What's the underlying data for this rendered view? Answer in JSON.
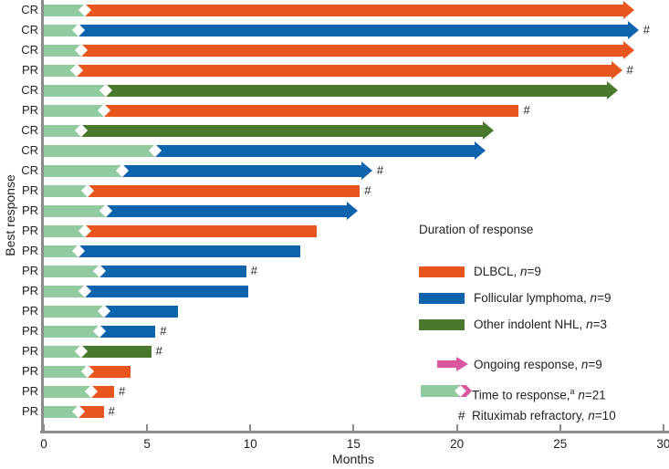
{
  "colors": {
    "dlbcl": "#E8551E",
    "follicular": "#0E63AD",
    "other_nhl": "#4A792D",
    "time_to_response": "#93CBA0",
    "ongoing": "#DA579E",
    "axis": "#8C8C8C",
    "text": "#231F20"
  },
  "axes": {
    "xlabel": "Months",
    "ylabel": "Best response"
  },
  "legend": {
    "title": "Duration of response",
    "items": [
      {
        "key": "dlbcl",
        "prefix": "DLBCL, ",
        "n": "n",
        "suffix": "=9"
      },
      {
        "key": "follicular",
        "prefix": "Follicular lymphoma, ",
        "n": "n",
        "suffix": "=9"
      },
      {
        "key": "other_nhl",
        "prefix": "Other indolent NHL, ",
        "n": "n",
        "suffix": "=3"
      }
    ],
    "ongoing": {
      "prefix": "Ongoing response, ",
      "n": "n",
      "suffix": "=9"
    },
    "time": {
      "prefix": "Time to response,",
      "sup": "a",
      "mid": " ",
      "n": "n",
      "suffix": "=21"
    },
    "refractory": {
      "symbol": "#",
      "prefix": "Rituximab refractory, ",
      "n": "n",
      "suffix": "=10"
    }
  },
  "chart_data": {
    "type": "bar",
    "orientation": "horizontal",
    "title": "",
    "xlabel": "Months",
    "ylabel": "Best response",
    "xlim": [
      0,
      30
    ],
    "x_ticks": [
      0,
      5,
      10,
      15,
      20,
      25,
      30
    ],
    "grid": false,
    "legend_entries": [
      "DLBCL, n=9",
      "Follicular lymphoma, n=9",
      "Other indolent NHL, n=3",
      "Ongoing response, n=9",
      "Time to response,a n=21",
      "# Rituximab refractory, n=10"
    ],
    "rows": [
      {
        "response": "CR",
        "group": "dlbcl",
        "time_to_response": 2.0,
        "duration_end": 28.6,
        "ongoing": true,
        "rituximab_refractory": false
      },
      {
        "response": "CR",
        "group": "follicular",
        "time_to_response": 1.7,
        "duration_end": 28.8,
        "ongoing": true,
        "rituximab_refractory": true
      },
      {
        "response": "CR",
        "group": "dlbcl",
        "time_to_response": 1.8,
        "duration_end": 28.6,
        "ongoing": true,
        "rituximab_refractory": false
      },
      {
        "response": "PR",
        "group": "dlbcl",
        "time_to_response": 1.6,
        "duration_end": 28.0,
        "ongoing": true,
        "rituximab_refractory": true
      },
      {
        "response": "CR",
        "group": "other_nhl",
        "time_to_response": 3.0,
        "duration_end": 27.8,
        "ongoing": true,
        "rituximab_refractory": false
      },
      {
        "response": "PR",
        "group": "dlbcl",
        "time_to_response": 2.9,
        "duration_end": 23.0,
        "ongoing": false,
        "rituximab_refractory": true
      },
      {
        "response": "CR",
        "group": "other_nhl",
        "time_to_response": 1.8,
        "duration_end": 21.8,
        "ongoing": true,
        "rituximab_refractory": false
      },
      {
        "response": "CR",
        "group": "follicular",
        "time_to_response": 5.4,
        "duration_end": 21.4,
        "ongoing": true,
        "rituximab_refractory": false
      },
      {
        "response": "CR",
        "group": "follicular",
        "time_to_response": 3.8,
        "duration_end": 15.9,
        "ongoing": true,
        "rituximab_refractory": true
      },
      {
        "response": "PR",
        "group": "dlbcl",
        "time_to_response": 2.1,
        "duration_end": 15.3,
        "ongoing": false,
        "rituximab_refractory": true
      },
      {
        "response": "PR",
        "group": "follicular",
        "time_to_response": 3.0,
        "duration_end": 15.2,
        "ongoing": true,
        "rituximab_refractory": false
      },
      {
        "response": "PR",
        "group": "dlbcl",
        "time_to_response": 2.0,
        "duration_end": 13.2,
        "ongoing": false,
        "rituximab_refractory": false
      },
      {
        "response": "PR",
        "group": "follicular",
        "time_to_response": 1.7,
        "duration_end": 12.4,
        "ongoing": false,
        "rituximab_refractory": false
      },
      {
        "response": "PR",
        "group": "follicular",
        "time_to_response": 2.7,
        "duration_end": 9.8,
        "ongoing": false,
        "rituximab_refractory": true
      },
      {
        "response": "PR",
        "group": "follicular",
        "time_to_response": 2.0,
        "duration_end": 9.9,
        "ongoing": false,
        "rituximab_refractory": false
      },
      {
        "response": "PR",
        "group": "follicular",
        "time_to_response": 2.9,
        "duration_end": 6.5,
        "ongoing": false,
        "rituximab_refractory": false
      },
      {
        "response": "PR",
        "group": "follicular",
        "time_to_response": 2.7,
        "duration_end": 5.4,
        "ongoing": false,
        "rituximab_refractory": true
      },
      {
        "response": "PR",
        "group": "other_nhl",
        "time_to_response": 1.8,
        "duration_end": 5.2,
        "ongoing": false,
        "rituximab_refractory": true
      },
      {
        "response": "PR",
        "group": "dlbcl",
        "time_to_response": 2.1,
        "duration_end": 4.2,
        "ongoing": false,
        "rituximab_refractory": false
      },
      {
        "response": "PR",
        "group": "dlbcl",
        "time_to_response": 2.3,
        "duration_end": 3.4,
        "ongoing": false,
        "rituximab_refractory": true
      },
      {
        "response": "PR",
        "group": "dlbcl",
        "time_to_response": 1.7,
        "duration_end": 2.9,
        "ongoing": false,
        "rituximab_refractory": true
      }
    ]
  }
}
